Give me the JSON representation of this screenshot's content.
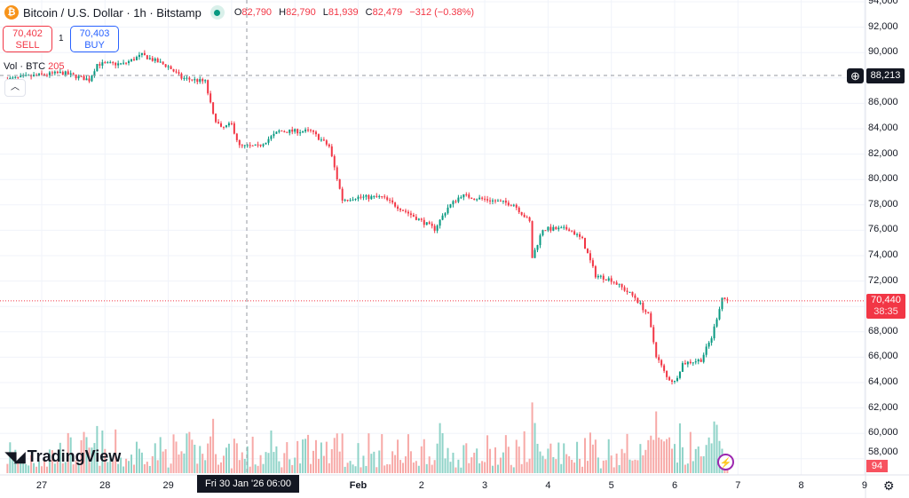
{
  "header": {
    "symbol_title": "Bitcoin / U.S. Dollar · 1h · Bitstamp",
    "ohlc": {
      "o_label": "O",
      "o": "82,790",
      "h_label": "H",
      "h": "82,790",
      "l_label": "L",
      "l": "81,939",
      "c_label": "C",
      "c": "82,479",
      "change": "−312 (−0.38%)"
    },
    "sell_price": "70,402",
    "sell_label": "SELL",
    "spread": "1",
    "buy_price": "70,403",
    "buy_label": "BUY",
    "volume_label": "Vol · BTC",
    "volume_value": "205"
  },
  "price_axis": {
    "ticks": [
      "94,000",
      "92,000",
      "90,000",
      "86,000",
      "84,000",
      "82,000",
      "80,000",
      "78,000",
      "76,000",
      "74,000",
      "72,000",
      "68,000",
      "66,000",
      "64,000",
      "62,000",
      "60,000",
      "58,000"
    ],
    "crosshair_price": "88,213",
    "last_price": "70,440",
    "countdown": "38:35",
    "last_volume": "94"
  },
  "time_axis": {
    "ticks": [
      {
        "label": "27",
        "day": "2026-01-27"
      },
      {
        "label": "28",
        "day": "2026-01-28"
      },
      {
        "label": "29",
        "day": "2026-01-29"
      },
      {
        "label": "Feb",
        "day": "2026-02-01",
        "bold": true
      },
      {
        "label": "2",
        "day": "2026-02-02"
      },
      {
        "label": "3",
        "day": "2026-02-03"
      },
      {
        "label": "4",
        "day": "2026-02-04"
      },
      {
        "label": "5",
        "day": "2026-02-05"
      },
      {
        "label": "6",
        "day": "2026-02-06"
      },
      {
        "label": "7",
        "day": "2026-02-07"
      },
      {
        "label": "8",
        "day": "2026-02-08"
      },
      {
        "label": "9",
        "day": "2026-02-09"
      }
    ],
    "crosshair_time": "Fri 30 Jan '26   06:00"
  },
  "branding": {
    "logo_text": "TradingView"
  },
  "colors": {
    "up": "#089981",
    "down": "#f23645",
    "vol_up": "#8fd3c8",
    "vol_down": "#f7a9a7",
    "grid": "#f0f3fa"
  },
  "chart_data": {
    "type": "candlestick",
    "interval": "1h",
    "ylim": [
      57000,
      94000
    ],
    "x_range": [
      "2026-01-26T08:00",
      "2026-02-09T12:00"
    ],
    "price_path": [
      [
        "2026-01-26T10:00",
        87850
      ],
      [
        "2026-01-26T22:00",
        88200
      ],
      [
        "2026-01-27T08:00",
        88400
      ],
      [
        "2026-01-27T18:00",
        87850
      ],
      [
        "2026-01-27T21:00",
        89100
      ],
      [
        "2026-01-28T07:00",
        89100
      ],
      [
        "2026-01-28T14:00",
        89800
      ],
      [
        "2026-01-29T00:00",
        88900
      ],
      [
        "2026-01-29T05:00",
        88000
      ],
      [
        "2026-01-29T14:00",
        87700
      ],
      [
        "2026-01-29T17:00",
        85050
      ],
      [
        "2026-01-29T20:00",
        84000
      ],
      [
        "2026-01-30T00:00",
        84350
      ],
      [
        "2026-01-30T03:00",
        82600
      ],
      [
        "2026-01-30T10:00",
        82600
      ],
      [
        "2026-01-30T18:00",
        83800
      ],
      [
        "2026-01-31T06:00",
        83800
      ],
      [
        "2026-01-31T13:00",
        82600
      ],
      [
        "2026-01-31T18:00",
        78400
      ],
      [
        "2026-01-31T23:00",
        78600
      ],
      [
        "2026-02-01T09:00",
        78600
      ],
      [
        "2026-02-01T19:00",
        77350
      ],
      [
        "2026-02-02T05:00",
        76100
      ],
      [
        "2026-02-02T10:00",
        77800
      ],
      [
        "2026-02-02T15:00",
        78750
      ],
      [
        "2026-02-03T01:00",
        78400
      ],
      [
        "2026-02-03T11:00",
        78050
      ],
      [
        "2026-02-03T17:00",
        76650
      ],
      [
        "2026-02-03T18:00",
        73850
      ],
      [
        "2026-02-03T22:00",
        76100
      ],
      [
        "2026-02-04T08:00",
        76100
      ],
      [
        "2026-02-04T13:00",
        75250
      ],
      [
        "2026-02-04T18:00",
        72450
      ],
      [
        "2026-02-05T00:00",
        72100
      ],
      [
        "2026-02-05T09:00",
        70700
      ],
      [
        "2026-02-05T14:00",
        69300
      ],
      [
        "2026-02-05T17:00",
        66150
      ],
      [
        "2026-02-05T21:00",
        64400
      ],
      [
        "2026-02-06T00:00",
        64050
      ],
      [
        "2026-02-06T03:00",
        65500
      ],
      [
        "2026-02-06T10:00",
        65800
      ],
      [
        "2026-02-06T14:00",
        67550
      ],
      [
        "2026-02-06T18:00",
        70700
      ],
      [
        "2026-02-06T20:00",
        70440
      ]
    ]
  }
}
